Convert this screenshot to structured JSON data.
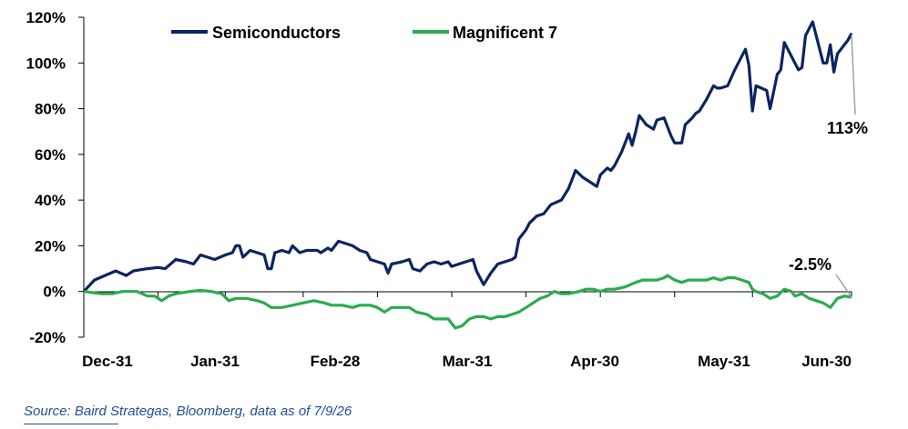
{
  "chart_data": {
    "type": "line",
    "title": "",
    "xlabel": "",
    "ylabel": "",
    "x_ticks": [
      "Dec-31",
      "Jan-31",
      "Feb-28",
      "Mar-31",
      "Apr-30",
      "May-31",
      "Jun-30"
    ],
    "y_ticks": [
      "120%",
      "100%",
      "80%",
      "60%",
      "40%",
      "20%",
      "0%",
      "-20%"
    ],
    "ylim": [
      -20,
      120
    ],
    "grid": false,
    "legend_position": "top",
    "series": [
      {
        "name": "Semiconductors",
        "color": "#0c2461",
        "end_label": "113%",
        "points": [
          [
            0,
            0
          ],
          [
            3,
            5
          ],
          [
            6,
            7
          ],
          [
            9,
            9
          ],
          [
            12,
            7
          ],
          [
            14,
            9
          ],
          [
            18,
            10
          ],
          [
            21,
            10.5
          ],
          [
            23,
            10
          ],
          [
            26,
            14
          ],
          [
            29,
            13
          ],
          [
            31,
            12
          ],
          [
            33,
            16
          ],
          [
            35,
            15
          ],
          [
            37,
            14
          ],
          [
            40,
            16
          ],
          [
            42,
            17
          ],
          [
            43,
            20
          ],
          [
            44,
            20
          ],
          [
            45,
            15
          ],
          [
            47,
            18
          ],
          [
            49,
            17
          ],
          [
            51,
            16
          ],
          [
            52,
            10
          ],
          [
            53,
            10
          ],
          [
            54,
            17
          ],
          [
            56,
            18
          ],
          [
            58,
            17
          ],
          [
            59,
            20
          ],
          [
            61,
            17
          ],
          [
            63,
            18
          ],
          [
            66,
            18
          ],
          [
            67,
            17
          ],
          [
            69,
            19
          ],
          [
            70,
            18
          ],
          [
            72,
            22
          ],
          [
            74,
            21
          ],
          [
            76,
            20
          ],
          [
            78,
            18
          ],
          [
            80,
            17
          ],
          [
            81,
            14
          ],
          [
            83,
            13
          ],
          [
            85,
            12
          ],
          [
            86,
            8
          ],
          [
            87,
            12
          ],
          [
            90,
            13
          ],
          [
            92,
            14
          ],
          [
            93,
            10
          ],
          [
            95,
            9
          ],
          [
            97,
            12
          ],
          [
            99,
            13
          ],
          [
            101,
            12
          ],
          [
            103,
            13
          ],
          [
            104,
            11
          ],
          [
            106,
            12
          ],
          [
            108,
            13
          ],
          [
            110,
            14
          ],
          [
            111,
            9
          ],
          [
            113,
            3
          ],
          [
            115,
            8
          ],
          [
            117,
            12
          ],
          [
            119,
            13
          ],
          [
            121,
            14
          ],
          [
            122,
            15
          ],
          [
            123,
            23
          ],
          [
            125,
            27
          ],
          [
            126,
            30
          ],
          [
            128,
            33
          ],
          [
            130,
            34
          ],
          [
            132,
            38
          ],
          [
            135,
            40
          ],
          [
            137,
            45
          ],
          [
            139,
            53
          ],
          [
            141,
            50
          ],
          [
            143,
            48
          ],
          [
            145,
            46
          ],
          [
            146,
            51
          ],
          [
            148,
            54
          ],
          [
            149,
            53
          ],
          [
            150,
            55
          ],
          [
            152,
            61
          ],
          [
            154,
            69
          ],
          [
            155,
            64
          ],
          [
            156,
            70
          ],
          [
            157,
            77
          ],
          [
            159,
            73
          ],
          [
            161,
            71
          ],
          [
            162,
            75
          ],
          [
            164,
            76
          ],
          [
            166,
            68
          ],
          [
            167,
            65
          ],
          [
            169,
            65
          ],
          [
            170,
            73
          ],
          [
            172,
            76
          ],
          [
            173,
            78
          ],
          [
            174,
            79
          ],
          [
            176,
            84
          ],
          [
            178,
            90
          ],
          [
            179,
            89
          ],
          [
            180,
            89
          ],
          [
            182,
            90
          ],
          [
            184,
            97
          ],
          [
            186,
            103
          ],
          [
            187,
            106
          ],
          [
            188,
            99
          ],
          [
            189,
            79
          ],
          [
            190,
            90
          ],
          [
            193,
            88
          ],
          [
            194,
            80
          ],
          [
            196,
            95
          ],
          [
            197,
            97
          ],
          [
            198,
            109
          ],
          [
            201,
            100
          ],
          [
            202,
            97
          ],
          [
            203,
            98
          ],
          [
            204,
            112
          ],
          [
            206,
            118
          ],
          [
            209,
            100
          ],
          [
            210,
            100
          ],
          [
            211,
            108
          ],
          [
            212,
            96
          ],
          [
            213,
            104
          ],
          [
            216,
            110
          ],
          [
            217,
            113
          ]
        ]
      },
      {
        "name": "Magnificent 7",
        "color": "#2aab4f",
        "end_label": "-2.5%",
        "points": [
          [
            0,
            0
          ],
          [
            5,
            -1
          ],
          [
            8,
            -1
          ],
          [
            11,
            0
          ],
          [
            15,
            0
          ],
          [
            18,
            -2
          ],
          [
            20,
            -2
          ],
          [
            22,
            -4
          ],
          [
            24,
            -2
          ],
          [
            26,
            -1
          ],
          [
            30,
            0
          ],
          [
            33,
            0.5
          ],
          [
            36,
            0
          ],
          [
            39,
            -1
          ],
          [
            41,
            -4
          ],
          [
            43,
            -3
          ],
          [
            46,
            -3
          ],
          [
            49,
            -4
          ],
          [
            51,
            -5
          ],
          [
            53,
            -7
          ],
          [
            56,
            -7
          ],
          [
            59,
            -6
          ],
          [
            62,
            -5
          ],
          [
            65,
            -4
          ],
          [
            68,
            -5
          ],
          [
            70,
            -6
          ],
          [
            73,
            -6
          ],
          [
            76,
            -7
          ],
          [
            78,
            -6
          ],
          [
            81,
            -6
          ],
          [
            83,
            -7
          ],
          [
            85,
            -9
          ],
          [
            87,
            -7
          ],
          [
            90,
            -7
          ],
          [
            92,
            -7
          ],
          [
            94,
            -9
          ],
          [
            97,
            -10
          ],
          [
            99,
            -12
          ],
          [
            101,
            -12
          ],
          [
            103,
            -12
          ],
          [
            105,
            -16
          ],
          [
            107,
            -15
          ],
          [
            109,
            -12
          ],
          [
            111,
            -11
          ],
          [
            113,
            -11
          ],
          [
            115,
            -12
          ],
          [
            117,
            -11
          ],
          [
            119,
            -11
          ],
          [
            121,
            -10
          ],
          [
            123,
            -9
          ],
          [
            125,
            -7
          ],
          [
            127,
            -5
          ],
          [
            129,
            -3
          ],
          [
            131,
            -2
          ],
          [
            133,
            0
          ],
          [
            135,
            -1
          ],
          [
            137,
            -1
          ],
          [
            140,
            0
          ],
          [
            142,
            1
          ],
          [
            144,
            1
          ],
          [
            146,
            0
          ],
          [
            148,
            1
          ],
          [
            150,
            1
          ],
          [
            153,
            2
          ],
          [
            156,
            4
          ],
          [
            158,
            5
          ],
          [
            160,
            5
          ],
          [
            162,
            5
          ],
          [
            164,
            6
          ],
          [
            165,
            7
          ],
          [
            167,
            5
          ],
          [
            169,
            4
          ],
          [
            171,
            5
          ],
          [
            173,
            5
          ],
          [
            176,
            5
          ],
          [
            178,
            6
          ],
          [
            180,
            5
          ],
          [
            182,
            6
          ],
          [
            184,
            6
          ],
          [
            186,
            5
          ],
          [
            188,
            4
          ],
          [
            189,
            1
          ],
          [
            190,
            0
          ],
          [
            192,
            -1
          ],
          [
            194,
            -3
          ],
          [
            196,
            -2
          ],
          [
            198,
            1
          ],
          [
            200,
            0
          ],
          [
            201,
            -2
          ],
          [
            203,
            -1
          ],
          [
            205,
            -3
          ],
          [
            207,
            -4
          ],
          [
            209,
            -5
          ],
          [
            211,
            -7
          ],
          [
            213,
            -3
          ],
          [
            215,
            -2
          ],
          [
            217,
            -2.5
          ]
        ]
      }
    ]
  },
  "source": "Source: Baird Strategas, Bloomberg, data as of 7/9/26"
}
